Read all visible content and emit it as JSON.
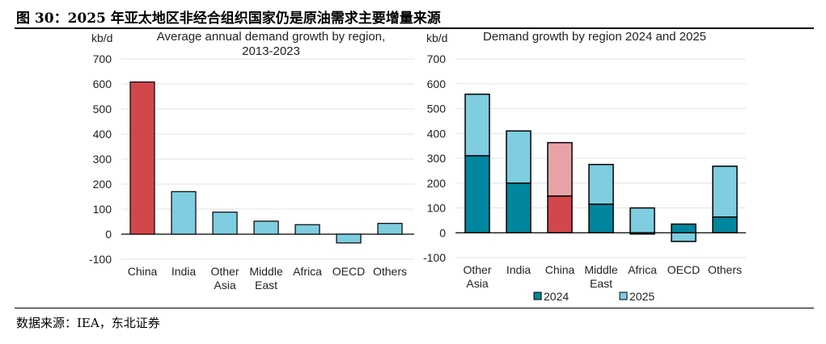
{
  "figure_title": "图 30：2025 年亚太地区非经合组织国家仍是原油需求主要增量来源",
  "source": "数据来源：IEA，东北证券",
  "colors": {
    "china": "#d2474b",
    "china_light": "#e9a3a6",
    "bar": "#7fcde0",
    "y2024": "#00869e",
    "y2025": "#7fcde0"
  },
  "chart_data": [
    {
      "type": "bar",
      "title": "Average annual demand growth by region,",
      "title_line2": "2013-2023",
      "ylabel": "kb/d",
      "ylim": [
        -100,
        700
      ],
      "yticks": [
        "-100",
        "0",
        "100",
        "200",
        "300",
        "400",
        "500",
        "600",
        "700"
      ],
      "categories": [
        [
          "China"
        ],
        [
          "India"
        ],
        [
          "Other",
          "Asia"
        ],
        [
          "Middle",
          "East"
        ],
        [
          "Africa"
        ],
        [
          "OECD"
        ],
        [
          "Others"
        ]
      ],
      "values": [
        608,
        170,
        88,
        52,
        38,
        -35,
        43
      ],
      "grid": true
    },
    {
      "type": "bar",
      "stacked": true,
      "title": "Demand growth by region 2024 and 2025",
      "ylabel": "kb/d",
      "ylim": [
        -100,
        700
      ],
      "yticks": [
        "-100",
        "0",
        "100",
        "200",
        "300",
        "400",
        "500",
        "600",
        "700"
      ],
      "categories": [
        [
          "Other",
          "Asia"
        ],
        [
          "India"
        ],
        [
          "China"
        ],
        [
          "Middle",
          "East"
        ],
        [
          "Africa"
        ],
        [
          "OECD"
        ],
        [
          "Others"
        ]
      ],
      "series": [
        {
          "name": "2024",
          "values": [
            310,
            200,
            148,
            115,
            -5,
            35,
            63
          ]
        },
        {
          "name": "2025",
          "values": [
            248,
            210,
            215,
            160,
            100,
            -35,
            205
          ]
        }
      ],
      "legend": "bottom",
      "grid": true
    }
  ]
}
